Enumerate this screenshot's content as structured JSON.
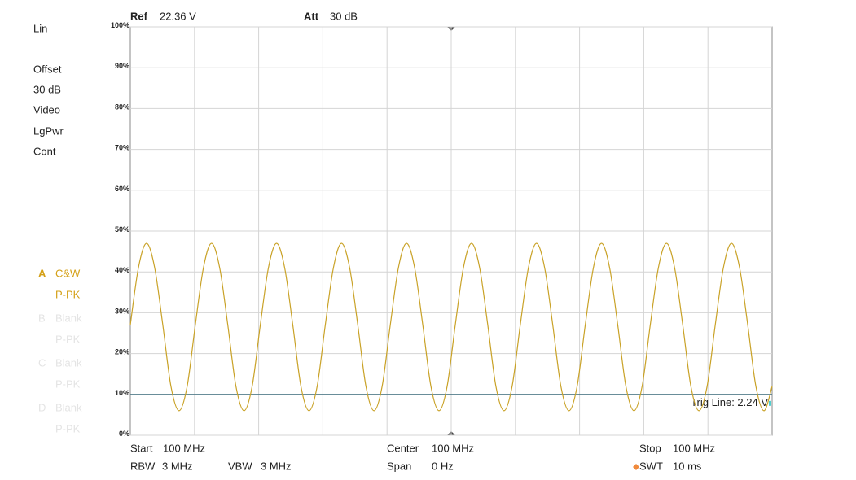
{
  "header": {
    "ref_label": "Ref",
    "ref_value": "22.36 V",
    "att_label": "Att",
    "att_value": "30 dB"
  },
  "settings": [
    "Lin",
    "Offset",
    "30 dB",
    "Video",
    "LgPwr",
    "Cont"
  ],
  "traces": [
    {
      "id": "A",
      "mode": "C&W",
      "detector": "P-PK",
      "active": true
    },
    {
      "id": "B",
      "mode": "Blank",
      "detector": "P-PK",
      "active": false
    },
    {
      "id": "C",
      "mode": "Blank",
      "detector": "P-PK",
      "active": false
    },
    {
      "id": "D",
      "mode": "Blank",
      "detector": "P-PK",
      "active": false
    }
  ],
  "footer": {
    "start": {
      "label": "Start",
      "value": "100 MHz"
    },
    "center": {
      "label": "Center",
      "value": "100 MHz"
    },
    "stop": {
      "label": "Stop",
      "value": "100 MHz"
    },
    "rbw": {
      "label": "RBW",
      "value": "3 MHz"
    },
    "vbw": {
      "label": "VBW",
      "value": "3 MHz"
    },
    "span": {
      "label": "Span",
      "value": "0 Hz"
    },
    "swt": {
      "label": "SWT",
      "value": "10 ms"
    }
  },
  "chart_data": {
    "type": "line",
    "color": "#c9a227",
    "grid": true,
    "x_divisions": 10,
    "ylim": [
      0,
      100
    ],
    "yticks": [
      {
        "value": 0,
        "label": "0%"
      },
      {
        "value": 10,
        "label": "10%"
      },
      {
        "value": 20,
        "label": "20%"
      },
      {
        "value": 30,
        "label": "30%"
      },
      {
        "value": 40,
        "label": "40%"
      },
      {
        "value": 50,
        "label": "50%"
      },
      {
        "value": 60,
        "label": "60%"
      },
      {
        "value": 70,
        "label": "70%"
      },
      {
        "value": 80,
        "label": "80%"
      },
      {
        "value": 90,
        "label": "90%"
      },
      {
        "value": 100,
        "label": "100%"
      }
    ],
    "trig_line": {
      "value": 10,
      "label": "Trig Line: 2.24 V",
      "color": "#3f6f7f"
    },
    "values": [
      27,
      41,
      47,
      41,
      27,
      12,
      6,
      12,
      27,
      41,
      47,
      41,
      27,
      12,
      6,
      12,
      27,
      41,
      47,
      41,
      27,
      12,
      6,
      12,
      27,
      41,
      47,
      41,
      27,
      12,
      6,
      12,
      27,
      41,
      47,
      41,
      27,
      12,
      6,
      12,
      27,
      41,
      47,
      41,
      27,
      12,
      6,
      12,
      27,
      41,
      47,
      41,
      27,
      12,
      6,
      12,
      27,
      41,
      47,
      41,
      27,
      12,
      6,
      12,
      27,
      41,
      47,
      41,
      27,
      12,
      6,
      12,
      27,
      41,
      47,
      41,
      27,
      12,
      6,
      12
    ]
  }
}
